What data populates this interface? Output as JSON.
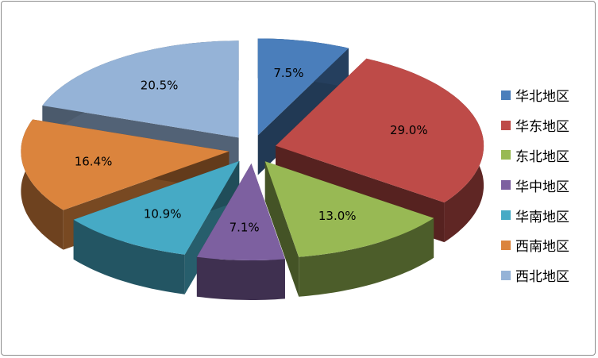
{
  "chart_data": {
    "type": "pie",
    "style": "3d-exploded",
    "categories": [
      "华北地区",
      "华东地区",
      "东北地区",
      "华中地区",
      "华南地区",
      "西南地区",
      "西北地区"
    ],
    "values": [
      7.5,
      29.0,
      13.0,
      7.1,
      10.9,
      16.4,
      20.5
    ],
    "labels": [
      "7.5%",
      "29.0%",
      "13.0%",
      "7.1%",
      "10.9%",
      "16.4%",
      "20.5%"
    ],
    "colors": [
      "#4A7EBB",
      "#BE4B48",
      "#98B954",
      "#7D60A0",
      "#46AAC5",
      "#DB843D",
      "#95B3D7"
    ],
    "legend_position": "right"
  }
}
